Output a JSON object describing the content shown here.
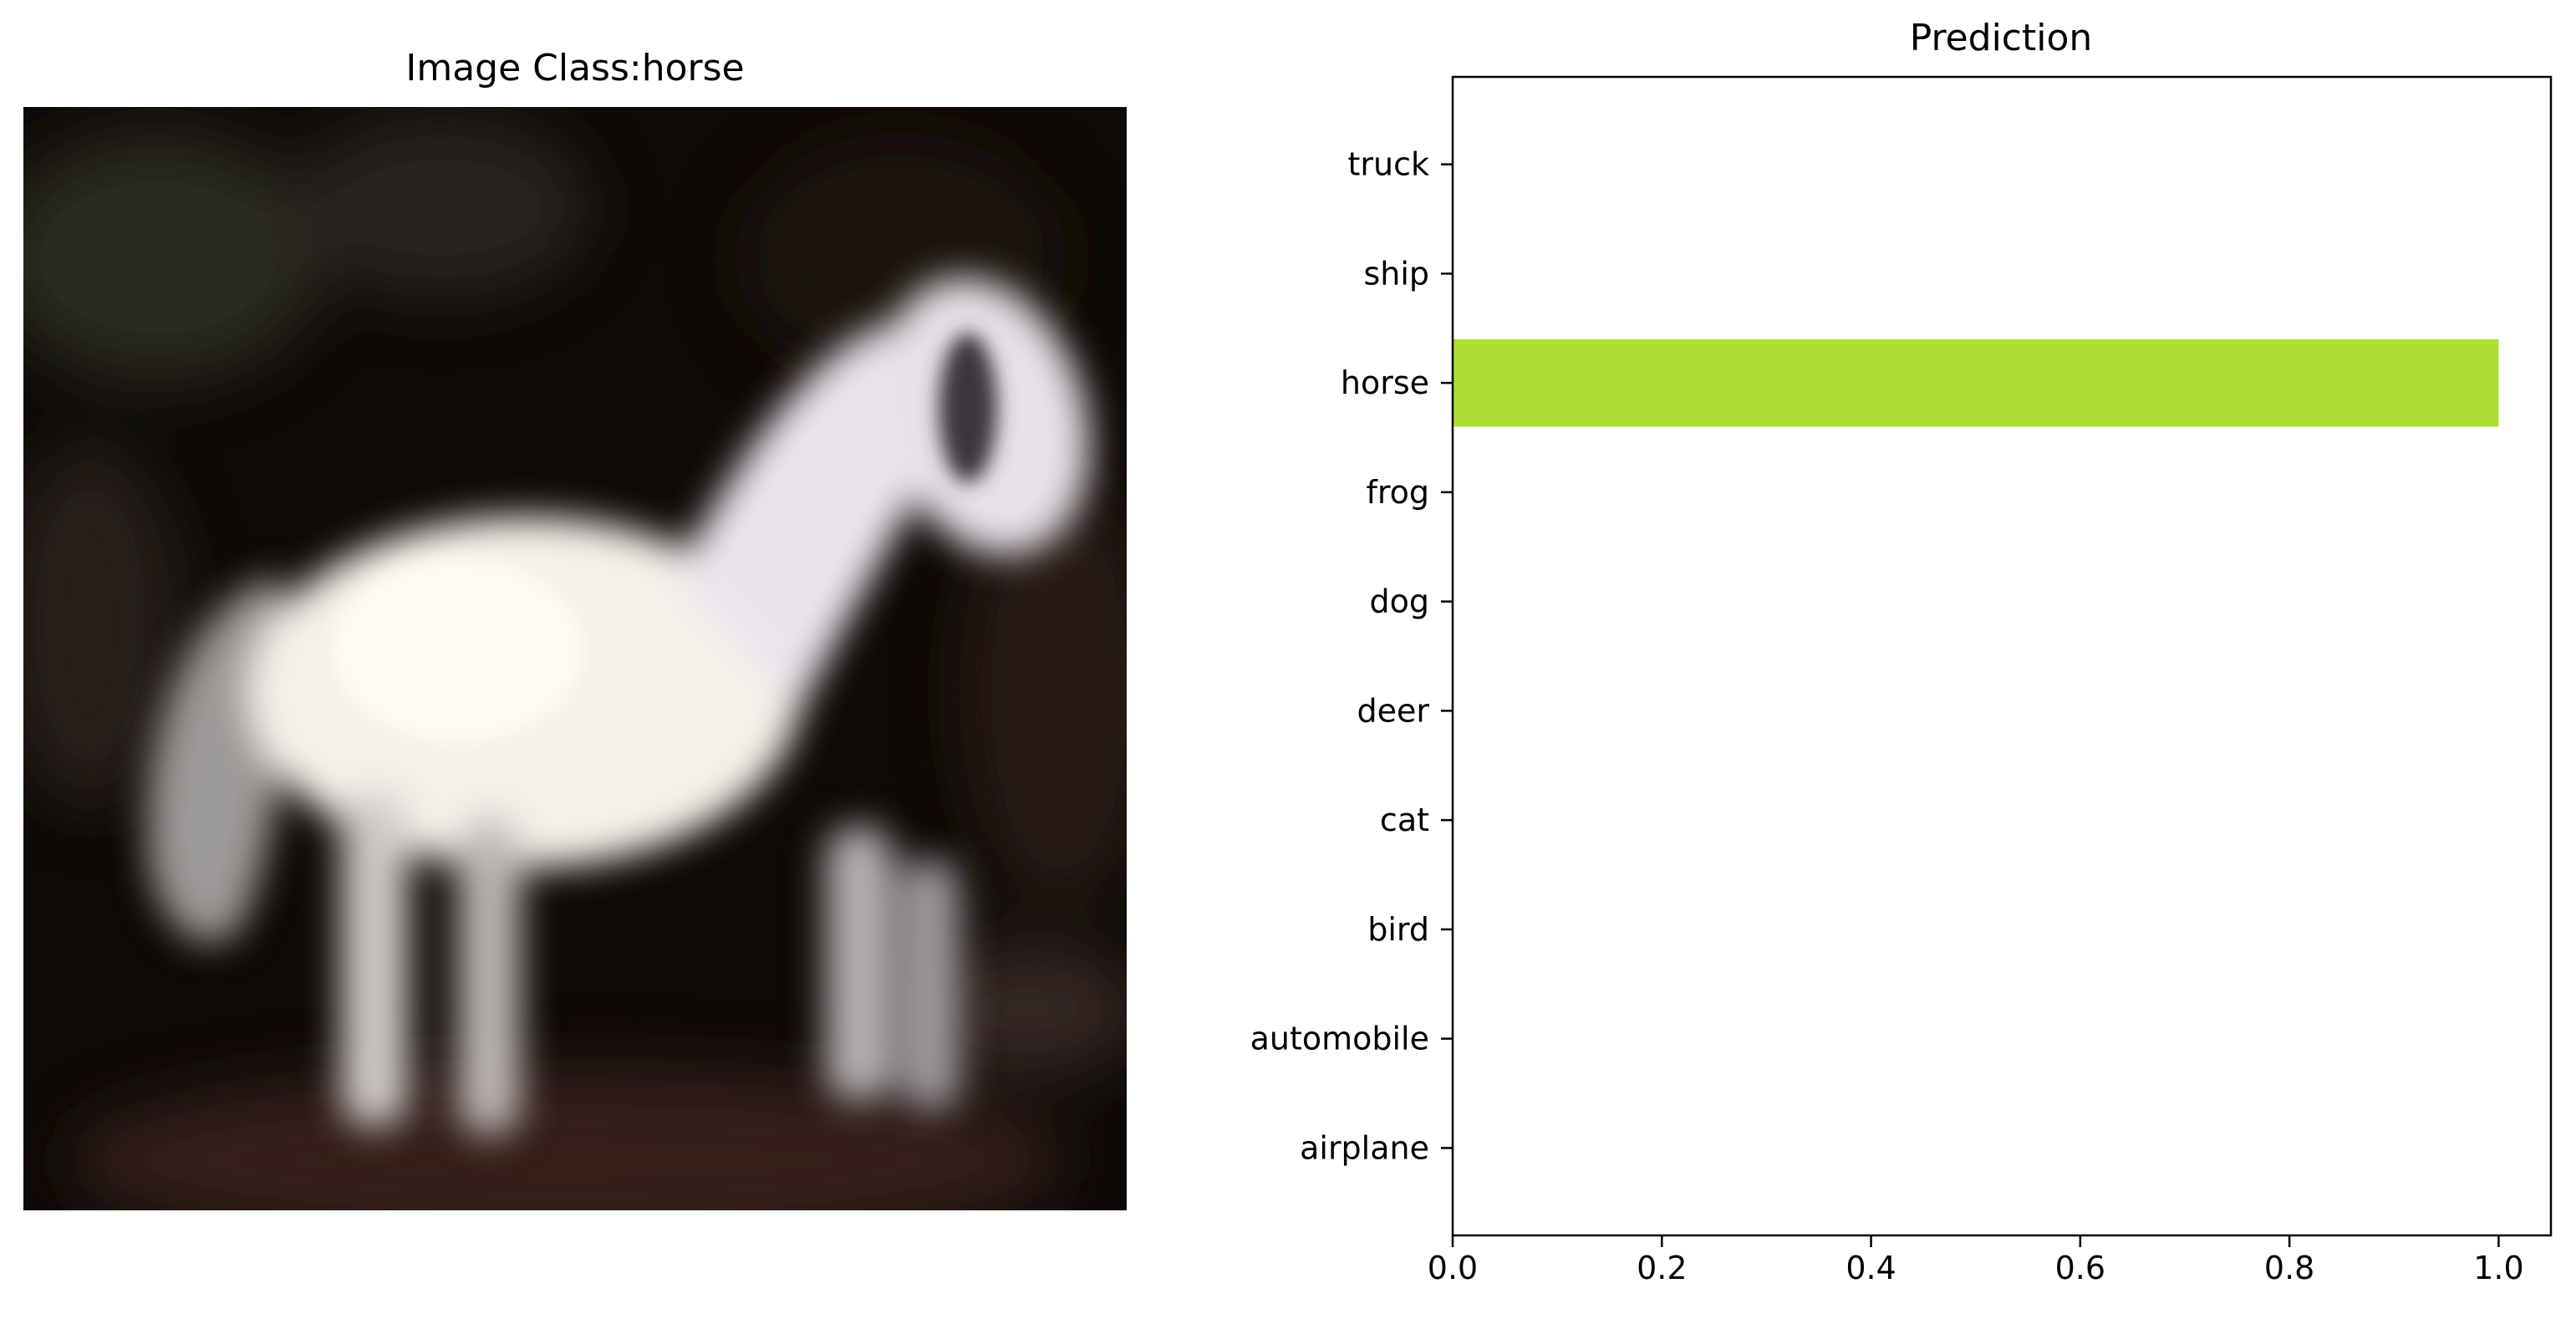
{
  "image_panel": {
    "title": "Image Class:horse",
    "subject": "white horse on dark background"
  },
  "chart_data": {
    "type": "bar",
    "orientation": "horizontal",
    "title": "Prediction",
    "xlabel": "",
    "ylabel": "",
    "categories": [
      "airplane",
      "automobile",
      "bird",
      "cat",
      "deer",
      "dog",
      "frog",
      "horse",
      "ship",
      "truck"
    ],
    "values": [
      0,
      0,
      0,
      0,
      0,
      0,
      0,
      1.0,
      0,
      0
    ],
    "xlim": [
      0,
      1.05
    ],
    "xticks": [
      "0.0",
      "0.2",
      "0.4",
      "0.6",
      "0.8",
      "1.0"
    ],
    "xtick_values": [
      0,
      0.2,
      0.4,
      0.6,
      0.8,
      1.0
    ],
    "grid": false,
    "bar_color": "#adde34"
  }
}
